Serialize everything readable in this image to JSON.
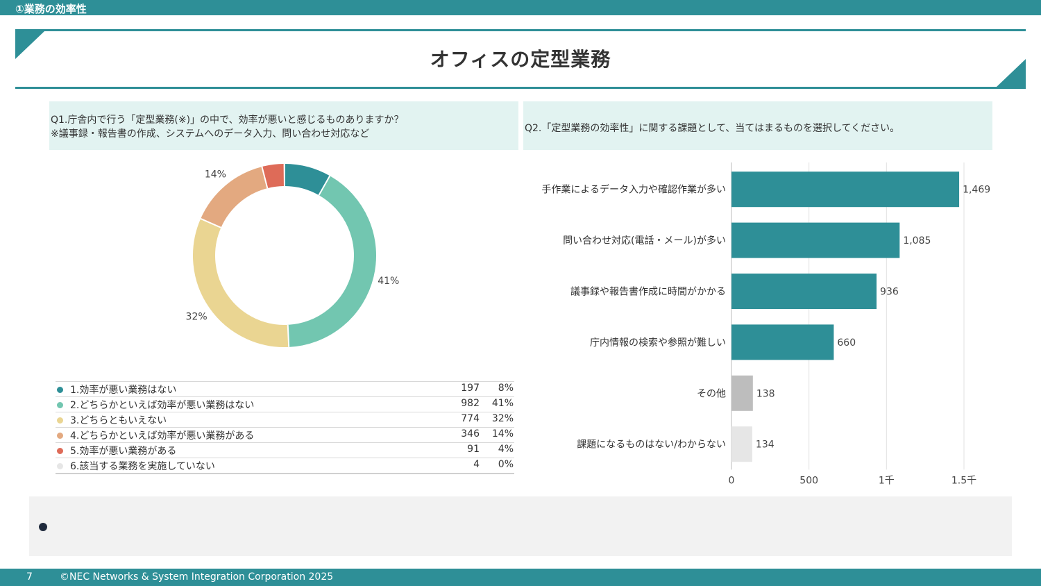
{
  "header": {
    "section": "①業務の効率性"
  },
  "title": "オフィスの定型業務",
  "q1": {
    "line1": "Q1.庁舎内で行う「定型業務(※)」の中で、効率が悪いと感じるものありますか？",
    "line2": "※議事録・報告書の作成、システムへのデータ入力、問い合わせ対応など"
  },
  "q2": {
    "line1": "Q2.「定型業務の効率性」に関する課題として、当てはまるものを選択してください。"
  },
  "colors": {
    "teal": "#2e8f97",
    "mint": "#72c6b0",
    "sand": "#ead592",
    "peach": "#e3a980",
    "red": "#de6b58",
    "light": "#e6e6e6",
    "grey": "#bdbdbd"
  },
  "chart_data": [
    {
      "type": "pie",
      "variant": "donut",
      "categories": [
        "1.効率が悪い業務はない",
        "2.どちらかといえば効率が悪い業務はない",
        "3.どちらともいえない",
        "4.どちらかといえば効率が悪い業務がある",
        "5.効率が悪い業務がある",
        "6.該当する業務を実施していない"
      ],
      "values": [
        197,
        982,
        774,
        346,
        91,
        4
      ],
      "percent_labels": [
        "8%",
        "41%",
        "32%",
        "14%",
        "4%",
        "0%"
      ],
      "colors": [
        "#2e8f97",
        "#72c6b0",
        "#ead592",
        "#e3a980",
        "#de6b58",
        "#e6e6e6"
      ],
      "legend": "bottom table"
    },
    {
      "type": "bar",
      "orientation": "horizontal",
      "categories": [
        "手作業によるデータ入力や確認作業が多い",
        "問い合わせ対応(電話・メール)が多い",
        "議事録や報告書作成に時間がかかる",
        "庁内情報の検索や参照が難しい",
        "その他",
        "課題になるものはない/わからない"
      ],
      "values": [
        1469,
        1085,
        936,
        660,
        138,
        134
      ],
      "value_labels": [
        "1,469",
        "1,085",
        "936",
        "660",
        "138",
        "134"
      ],
      "colors": [
        "#2e8f97",
        "#2e8f97",
        "#2e8f97",
        "#2e8f97",
        "#bdbdbd",
        "#e6e6e6"
      ],
      "xlim": [
        0,
        1500
      ],
      "xticks": [
        0,
        500,
        1000,
        1500
      ],
      "xtick_labels": [
        "0",
        "500",
        "1千",
        "1.5千"
      ],
      "grid": true
    }
  ],
  "footer": {
    "page": "7",
    "copyright": "©NEC Networks & System Integration Corporation 2025"
  }
}
